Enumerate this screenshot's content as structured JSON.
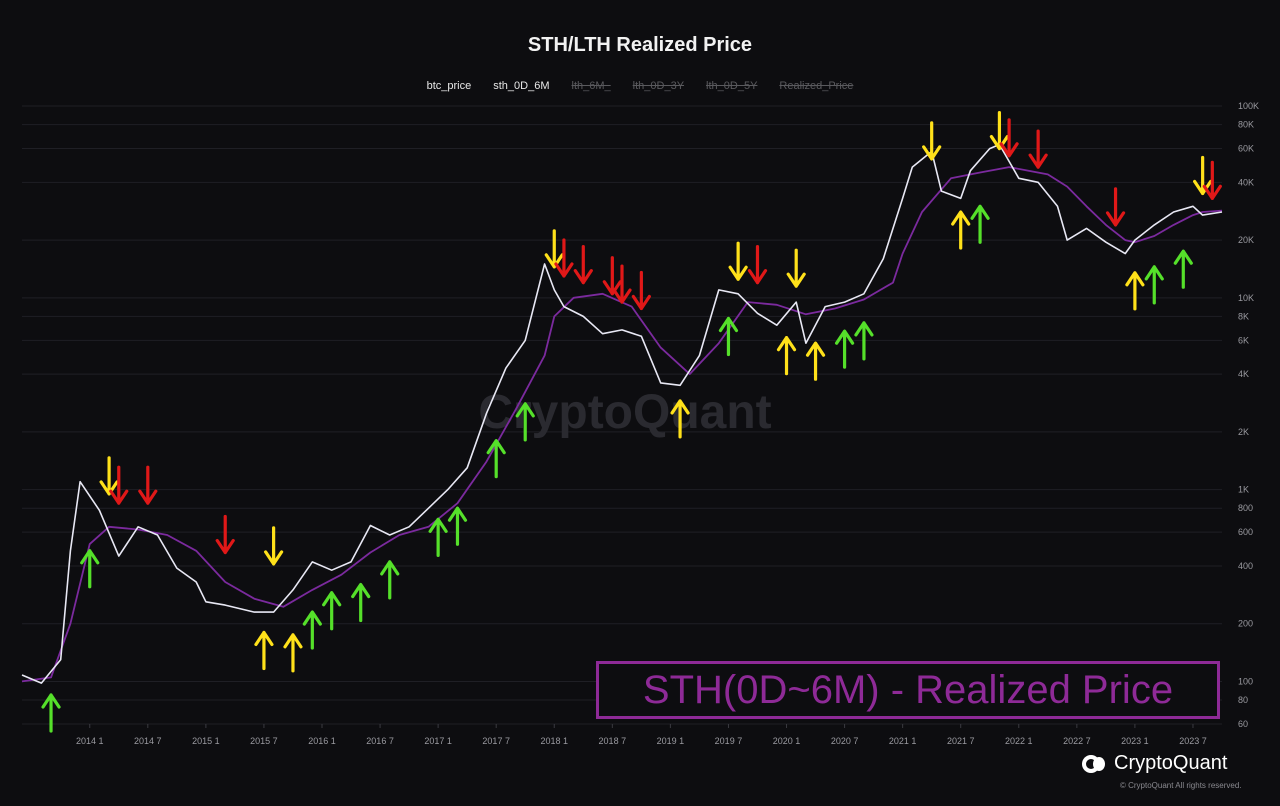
{
  "title": "STH/LTH Realized Price",
  "legend": [
    {
      "label": "btc_price",
      "active": true
    },
    {
      "label": "sth_0D_6M",
      "active": true
    },
    {
      "label": "lth_6M_",
      "active": false
    },
    {
      "label": "lth_0D_3Y",
      "active": false
    },
    {
      "label": "lth_0D_5Y",
      "active": false
    },
    {
      "label": "Realized_Price",
      "active": false
    }
  ],
  "annotation": "STH(0D~6M) - Realized Price",
  "watermark": "CryptoQuant",
  "brand": "CryptoQuant",
  "copyright": "© CryptoQuant All rights reserved.",
  "colors": {
    "btc_price": "#e8e8f4",
    "sth_0D_6M": "#7b2a9e",
    "annotation": "#8e2a97",
    "arrow_green": "#55e02a",
    "arrow_yellow": "#ffe11a",
    "arrow_red": "#e01818"
  },
  "chart_data": {
    "type": "line",
    "y_scale": "log",
    "ylim": [
      60,
      100000
    ],
    "xlim": [
      "2013-06",
      "2023-10"
    ],
    "x_ticks": [
      "2014 1",
      "2014 7",
      "2015 1",
      "2015 7",
      "2016 1",
      "2016 7",
      "2017 1",
      "2017 7",
      "2018 1",
      "2018 7",
      "2019 1",
      "2019 7",
      "2020 1",
      "2020 7",
      "2021 1",
      "2021 7",
      "2022 1",
      "2022 7",
      "2023 1",
      "2023 7"
    ],
    "y_ticks": [
      "60",
      "80",
      "100",
      "200",
      "400",
      "600",
      "800",
      "1K",
      "2K",
      "4K",
      "6K",
      "8K",
      "10K",
      "20K",
      "40K",
      "60K",
      "80K",
      "100K"
    ],
    "series": [
      {
        "name": "btc_price",
        "x": [
          "2013-06",
          "2013-08",
          "2013-10",
          "2013-11",
          "2013-12",
          "2014-02",
          "2014-04",
          "2014-06",
          "2014-08",
          "2014-10",
          "2014-12",
          "2015-01",
          "2015-03",
          "2015-06",
          "2015-08",
          "2015-10",
          "2015-12",
          "2016-02",
          "2016-04",
          "2016-06",
          "2016-08",
          "2016-10",
          "2016-12",
          "2017-02",
          "2017-04",
          "2017-06",
          "2017-08",
          "2017-10",
          "2017-12",
          "2018-01",
          "2018-02",
          "2018-04",
          "2018-06",
          "2018-08",
          "2018-10",
          "2018-12",
          "2019-02",
          "2019-04",
          "2019-06",
          "2019-08",
          "2019-10",
          "2019-12",
          "2020-02",
          "2020-03",
          "2020-05",
          "2020-07",
          "2020-09",
          "2020-11",
          "2020-12",
          "2021-01",
          "2021-02",
          "2021-04",
          "2021-05",
          "2021-07",
          "2021-08",
          "2021-10",
          "2021-11",
          "2022-01",
          "2022-03",
          "2022-05",
          "2022-06",
          "2022-08",
          "2022-10",
          "2022-12",
          "2023-01",
          "2023-03",
          "2023-05",
          "2023-07",
          "2023-08",
          "2023-10"
        ],
        "values": [
          108,
          98,
          130,
          480,
          1100,
          780,
          450,
          640,
          580,
          390,
          330,
          260,
          250,
          230,
          230,
          300,
          420,
          380,
          420,
          650,
          580,
          640,
          800,
          1000,
          1300,
          2500,
          4300,
          6000,
          15000,
          11000,
          9000,
          8000,
          6500,
          6800,
          6300,
          3600,
          3500,
          5000,
          11000,
          10500,
          8300,
          7200,
          9500,
          5800,
          9000,
          9500,
          10500,
          16000,
          23000,
          33000,
          48000,
          58000,
          36000,
          33000,
          46000,
          60000,
          63000,
          42000,
          40000,
          30000,
          20000,
          23000,
          19500,
          17000,
          20000,
          24000,
          28000,
          30000,
          27000,
          28000
        ]
      },
      {
        "name": "sth_0D_6M",
        "x": [
          "2013-06",
          "2013-09",
          "2013-11",
          "2014-01",
          "2014-03",
          "2014-06",
          "2014-09",
          "2014-12",
          "2015-03",
          "2015-06",
          "2015-09",
          "2015-12",
          "2016-03",
          "2016-06",
          "2016-09",
          "2016-12",
          "2017-03",
          "2017-06",
          "2017-09",
          "2017-12",
          "2018-01",
          "2018-03",
          "2018-06",
          "2018-09",
          "2018-12",
          "2019-03",
          "2019-06",
          "2019-09",
          "2019-12",
          "2020-03",
          "2020-06",
          "2020-09",
          "2020-12",
          "2021-01",
          "2021-03",
          "2021-06",
          "2021-09",
          "2021-12",
          "2022-02",
          "2022-04",
          "2022-06",
          "2022-08",
          "2022-10",
          "2022-12",
          "2023-01",
          "2023-03",
          "2023-05",
          "2023-07",
          "2023-08",
          "2023-10"
        ],
        "values": [
          100,
          105,
          200,
          520,
          640,
          620,
          580,
          480,
          330,
          270,
          245,
          300,
          360,
          470,
          580,
          640,
          850,
          1400,
          2600,
          5000,
          8000,
          10000,
          10500,
          9000,
          5500,
          4000,
          5800,
          9500,
          9200,
          8200,
          8800,
          9800,
          12000,
          17000,
          28000,
          42000,
          45000,
          48000,
          46000,
          44000,
          38000,
          30000,
          24000,
          20000,
          19500,
          21000,
          24000,
          27000,
          28000,
          28500
        ]
      }
    ],
    "arrows": [
      {
        "color": "green",
        "direction": "up",
        "x": "2013-09",
        "y": 85
      },
      {
        "color": "green",
        "direction": "up",
        "x": "2014-01",
        "y": 480
      },
      {
        "color": "yellow",
        "direction": "down",
        "x": "2014-03",
        "y": 950
      },
      {
        "color": "red",
        "direction": "down",
        "x": "2014-04",
        "y": 850
      },
      {
        "color": "red",
        "direction": "down",
        "x": "2014-07",
        "y": 850
      },
      {
        "color": "red",
        "direction": "down",
        "x": "2015-03",
        "y": 470
      },
      {
        "color": "yellow",
        "direction": "up",
        "x": "2015-07",
        "y": 180
      },
      {
        "color": "yellow",
        "direction": "down",
        "x": "2015-08",
        "y": 410
      },
      {
        "color": "yellow",
        "direction": "up",
        "x": "2015-10",
        "y": 175
      },
      {
        "color": "green",
        "direction": "up",
        "x": "2015-12",
        "y": 230
      },
      {
        "color": "green",
        "direction": "up",
        "x": "2016-02",
        "y": 290
      },
      {
        "color": "green",
        "direction": "up",
        "x": "2016-05",
        "y": 320
      },
      {
        "color": "green",
        "direction": "up",
        "x": "2016-08",
        "y": 420
      },
      {
        "color": "green",
        "direction": "up",
        "x": "2017-01",
        "y": 700
      },
      {
        "color": "green",
        "direction": "up",
        "x": "2017-03",
        "y": 800
      },
      {
        "color": "green",
        "direction": "up",
        "x": "2017-07",
        "y": 1800
      },
      {
        "color": "green",
        "direction": "up",
        "x": "2017-10",
        "y": 2800
      },
      {
        "color": "yellow",
        "direction": "down",
        "x": "2018-01",
        "y": 14500
      },
      {
        "color": "red",
        "direction": "down",
        "x": "2018-02",
        "y": 13000
      },
      {
        "color": "red",
        "direction": "down",
        "x": "2018-04",
        "y": 12000
      },
      {
        "color": "red",
        "direction": "down",
        "x": "2018-07",
        "y": 10500
      },
      {
        "color": "red",
        "direction": "down",
        "x": "2018-08",
        "y": 9500
      },
      {
        "color": "red",
        "direction": "down",
        "x": "2018-10",
        "y": 8800
      },
      {
        "color": "yellow",
        "direction": "up",
        "x": "2019-02",
        "y": 2900
      },
      {
        "color": "green",
        "direction": "up",
        "x": "2019-07",
        "y": 7800
      },
      {
        "color": "yellow",
        "direction": "down",
        "x": "2019-08",
        "y": 12500
      },
      {
        "color": "red",
        "direction": "down",
        "x": "2019-10",
        "y": 12000
      },
      {
        "color": "yellow",
        "direction": "up",
        "x": "2020-01",
        "y": 6200
      },
      {
        "color": "yellow",
        "direction": "down",
        "x": "2020-02",
        "y": 11500
      },
      {
        "color": "yellow",
        "direction": "up",
        "x": "2020-04",
        "y": 5800
      },
      {
        "color": "green",
        "direction": "up",
        "x": "2020-07",
        "y": 6700
      },
      {
        "color": "green",
        "direction": "up",
        "x": "2020-09",
        "y": 7400
      },
      {
        "color": "yellow",
        "direction": "down",
        "x": "2021-04",
        "y": 53000
      },
      {
        "color": "yellow",
        "direction": "up",
        "x": "2021-07",
        "y": 28000
      },
      {
        "color": "green",
        "direction": "up",
        "x": "2021-09",
        "y": 30000
      },
      {
        "color": "yellow",
        "direction": "down",
        "x": "2021-11",
        "y": 60000
      },
      {
        "color": "red",
        "direction": "down",
        "x": "2021-12",
        "y": 55000
      },
      {
        "color": "red",
        "direction": "down",
        "x": "2022-03",
        "y": 48000
      },
      {
        "color": "red",
        "direction": "down",
        "x": "2022-11",
        "y": 24000
      },
      {
        "color": "yellow",
        "direction": "up",
        "x": "2023-01",
        "y": 13500
      },
      {
        "color": "green",
        "direction": "up",
        "x": "2023-03",
        "y": 14500
      },
      {
        "color": "green",
        "direction": "up",
        "x": "2023-06",
        "y": 17500
      },
      {
        "color": "yellow",
        "direction": "down",
        "x": "2023-08",
        "y": 35000
      },
      {
        "color": "red",
        "direction": "down",
        "x": "2023-09",
        "y": 33000
      }
    ]
  }
}
